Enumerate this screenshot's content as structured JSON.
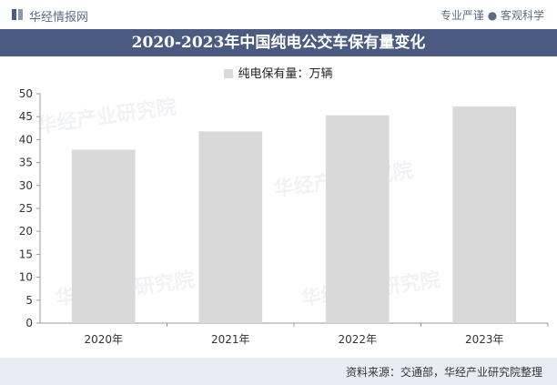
{
  "header": {
    "brand": "华经情报网",
    "slogan": "专业严谨 ● 客观科学",
    "brand_color": "#4a5a80"
  },
  "title": "2020-2023年中国纯电公交车保有量变化",
  "footer": {
    "source": "资料来源：交通部，华经产业研究院整理"
  },
  "chart_data": {
    "type": "bar",
    "categories": [
      "2020年",
      "2021年",
      "2022年",
      "2023年"
    ],
    "series": [
      {
        "name": "纯电保有量：万辆",
        "values": [
          37.8,
          41.8,
          45.3,
          47.2
        ],
        "color": "#d9d9d9"
      }
    ],
    "ylim": [
      0,
      50
    ],
    "yticks": [
      0,
      5,
      10,
      15,
      20,
      25,
      30,
      35,
      40,
      45,
      50
    ],
    "grid": false,
    "legend_position": "top-center"
  }
}
